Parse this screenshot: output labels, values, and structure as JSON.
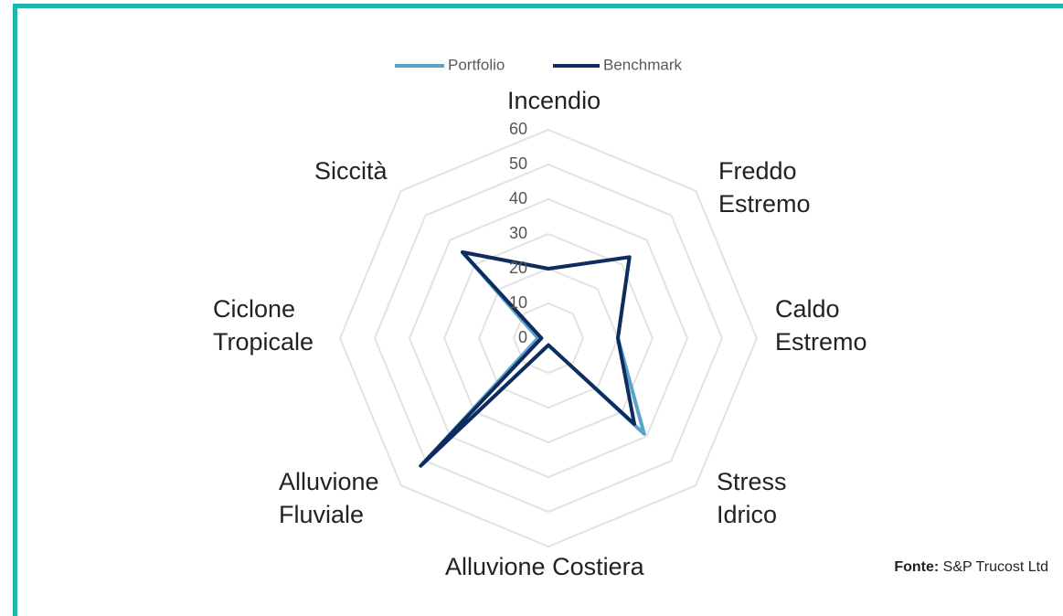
{
  "chart_data": {
    "type": "radar",
    "categories": [
      "Incendio",
      "Freddo Estremo",
      "Caldo Estremo",
      "Stress Idrico",
      "Alluvione Costiera",
      "Alluvione Fluviale",
      "Ciclone Tropicale",
      "Siccità"
    ],
    "series": [
      {
        "name": "Portfolio",
        "color": "#5ba3cc",
        "values": [
          20,
          33,
          20,
          39,
          2,
          51,
          3,
          35
        ]
      },
      {
        "name": "Benchmark",
        "color": "#0e2d5e",
        "values": [
          20,
          33,
          20,
          35,
          2,
          52,
          2,
          35
        ]
      }
    ],
    "rlim": [
      0,
      60
    ],
    "rticks": [
      0,
      10,
      20,
      30,
      40,
      50,
      60
    ],
    "grid": true,
    "legend": "top"
  },
  "source": {
    "label": "Fonte:",
    "text": "S&P Trucost Ltd"
  }
}
